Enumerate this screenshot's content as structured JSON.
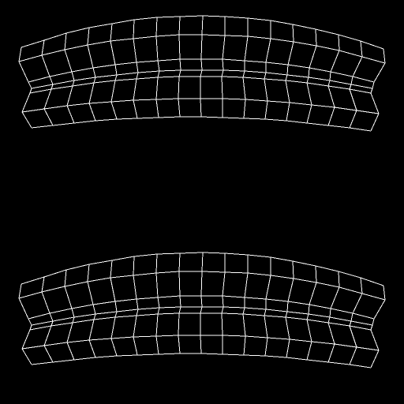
{
  "render": {
    "background_color": "#000000",
    "wire_color": "#ffffff",
    "mode": "wireframe"
  },
  "meshes": [
    {
      "name": "upper-curved-band-mesh",
      "columns": 16,
      "rows": 6
    },
    {
      "name": "lower-curved-band-mesh",
      "columns": 16,
      "rows": 6
    }
  ]
}
